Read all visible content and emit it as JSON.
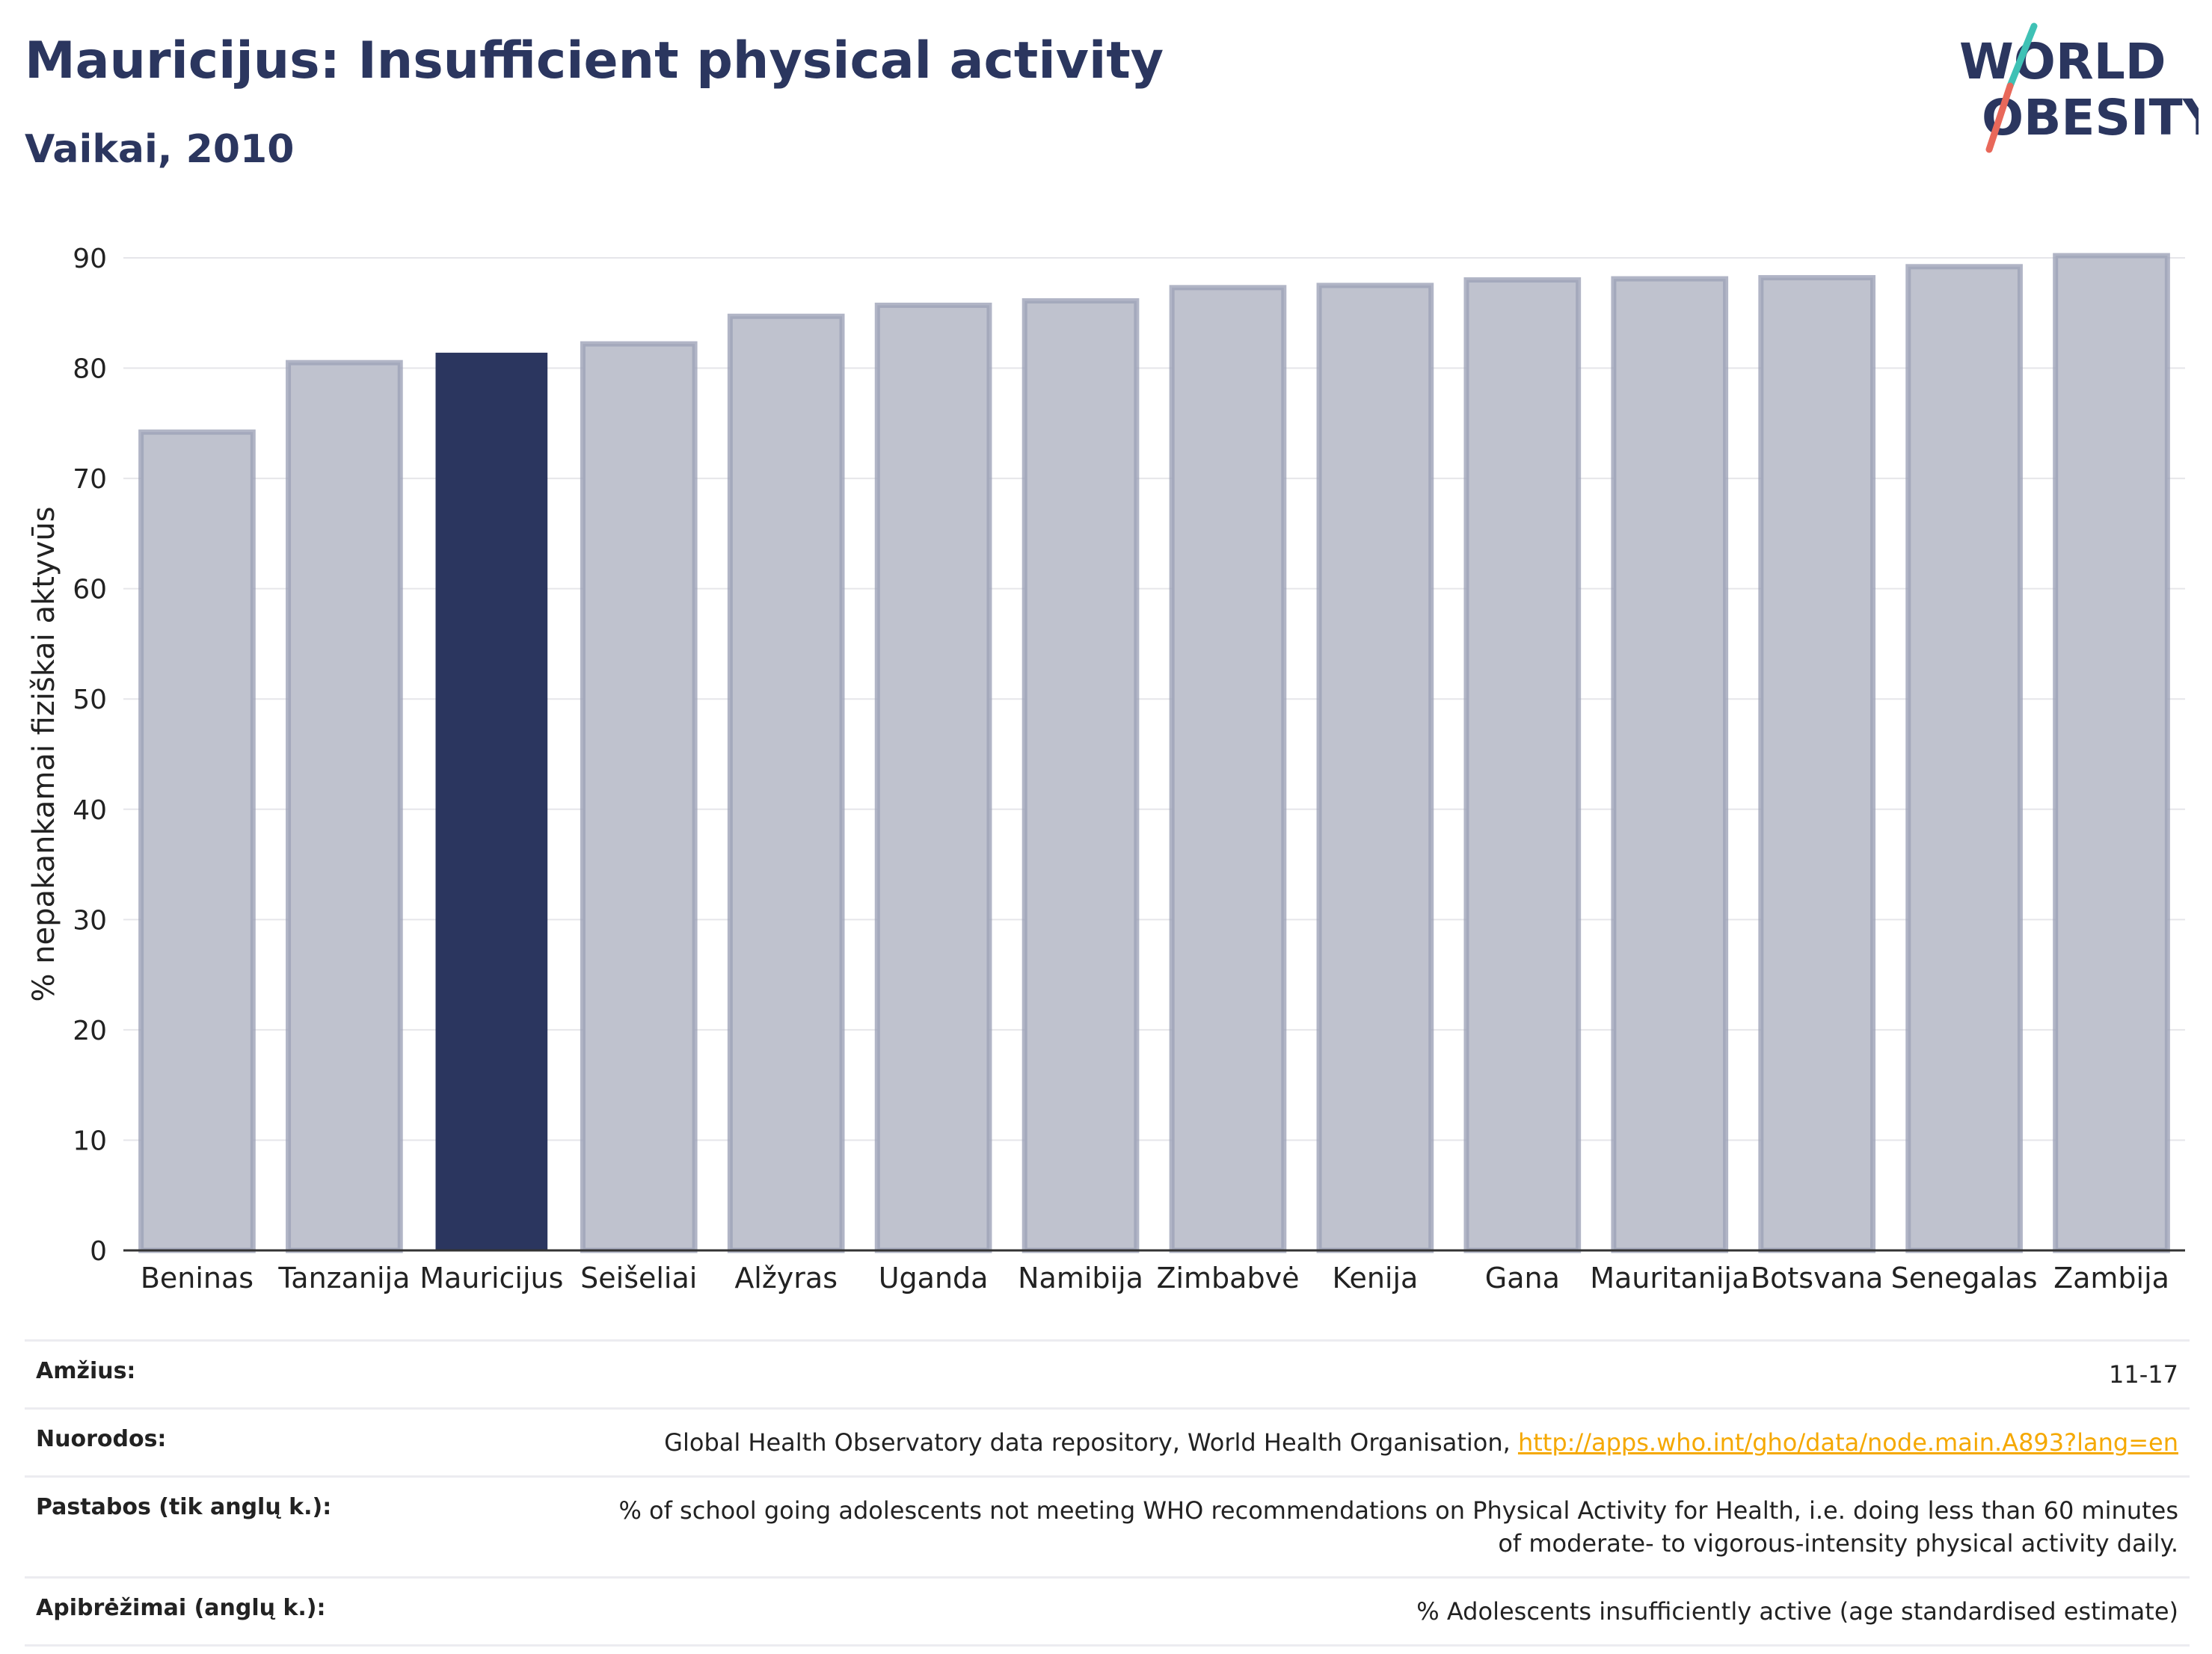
{
  "header": {
    "title": "Mauricijus: Insufficient physical activity",
    "subtitle": "Vaikai, 2010"
  },
  "logo": {
    "line1": "WORLD",
    "line2": "OBESITY",
    "colors": {
      "text": "#2b365f",
      "teal": "#3fc1b5",
      "red": "#e8685a"
    }
  },
  "chart_data": {
    "type": "bar",
    "title": "Mauricijus: Insufficient physical activity",
    "subtitle": "Vaikai, 2010",
    "xlabel": "",
    "ylabel": "% nepakankamai fiziškai aktyvūs",
    "ylim": [
      0,
      90
    ],
    "yticks": [
      0,
      10,
      20,
      30,
      40,
      50,
      60,
      70,
      80,
      90
    ],
    "grid": true,
    "categories": [
      "Beninas",
      "Tanzanija",
      "Mauricijus",
      "Seišeliai",
      "Alžyras",
      "Uganda",
      "Namibija",
      "Zimbabvė",
      "Kenija",
      "Gana",
      "Mauritanija",
      "Botsvana",
      "Senegalas",
      "Zambija"
    ],
    "values": [
      74.2,
      80.5,
      81.4,
      82.2,
      84.7,
      85.7,
      86.1,
      87.3,
      87.5,
      88.0,
      88.1,
      88.2,
      89.2,
      90.2
    ],
    "highlight": "Mauricijus",
    "colors": {
      "highlight": "#2b365f",
      "other": "#bfc2ce",
      "other_border": "#9da2b8",
      "axis": "#333333",
      "grid": "#e6e6ea"
    }
  },
  "meta": [
    {
      "label": "Amžius:",
      "value": "11-17"
    },
    {
      "label": "Nuorodos:",
      "value": "Global Health Observatory data repository, World Health Organisation, ",
      "link": "http://apps.who.int/gho/data/node.main.A893?lang=en"
    },
    {
      "label": "Pastabos (tik anglų k.):",
      "value": "% of school going adolescents not meeting WHO recommendations on Physical Activity for Health, i.e. doing less than 60 minutes of moderate- to vigorous-intensity physical activity daily."
    },
    {
      "label": "Apibrėžimai (anglų k.):",
      "value": "% Adolescents insufficiently active (age standardised estimate)"
    }
  ]
}
